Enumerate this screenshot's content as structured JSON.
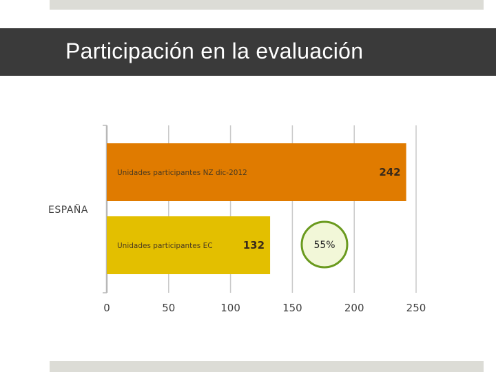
{
  "slide": {
    "title": "Participación en la evaluación",
    "colors": {
      "title_bar": "#3a3a3a",
      "strip": "#dcdcd6",
      "bar_nz": "#e07b00",
      "bar_ec": "#e3bf00",
      "badge_fill": "#f2f7d8",
      "badge_border": "#6a9a1e"
    }
  },
  "chart_data": {
    "type": "bar",
    "orientation": "horizontal",
    "title": "",
    "category": "ESPAÑA",
    "series": [
      {
        "name": "Unidades participantes NZ dic-2012",
        "values": [
          242
        ],
        "color": "#e07b00"
      },
      {
        "name": "Unidades participantes EC",
        "values": [
          132
        ],
        "color": "#e3bf00"
      }
    ],
    "xlim": [
      0,
      250
    ],
    "xticks": [
      "0",
      "50",
      "100",
      "150",
      "200",
      "250"
    ],
    "grid": true,
    "annotation": {
      "text": "55%",
      "shape": "circle"
    }
  }
}
